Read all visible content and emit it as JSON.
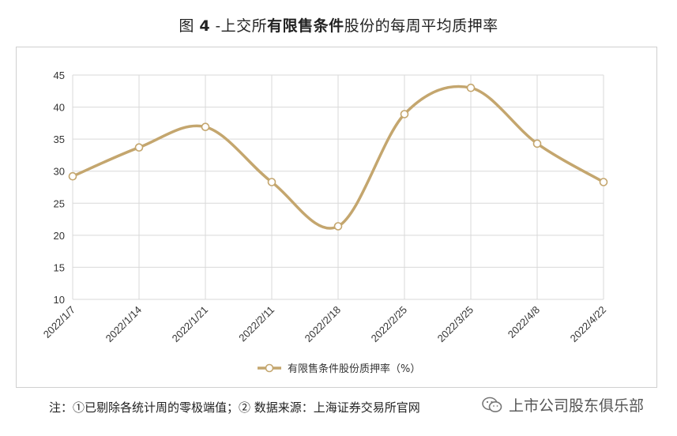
{
  "title": {
    "prefix": "图 ",
    "number": "4",
    "sep": " -",
    "part1": "上交所",
    "bold": "有限售条件",
    "part2": "股份的每周平均质押率"
  },
  "chart_data": {
    "type": "line",
    "categories": [
      "2022/1/7",
      "2022/1/14",
      "2022/1/21",
      "2022/2/11",
      "2022/2/18",
      "2022/2/25",
      "2022/3/25",
      "2022/4/8",
      "2022/4/22"
    ],
    "series": [
      {
        "name": "有限售条件股份质押率（%）",
        "values": [
          29.2,
          33.7,
          36.9,
          28.3,
          21.4,
          38.9,
          43.0,
          34.3,
          28.3
        ]
      }
    ],
    "yticks": [
      "10",
      "15",
      "20",
      "25",
      "30",
      "35",
      "40",
      "45"
    ],
    "ylim": [
      10,
      45
    ],
    "grid": true,
    "legend": "bottom",
    "line_color": "#c4a66e"
  },
  "note": "注：①已剔除各统计周的零极端值；②  数据来源：上海证券交易所官网",
  "watermark": {
    "text": "上市公司股东俱乐部",
    "icon": "wechat-icon"
  }
}
